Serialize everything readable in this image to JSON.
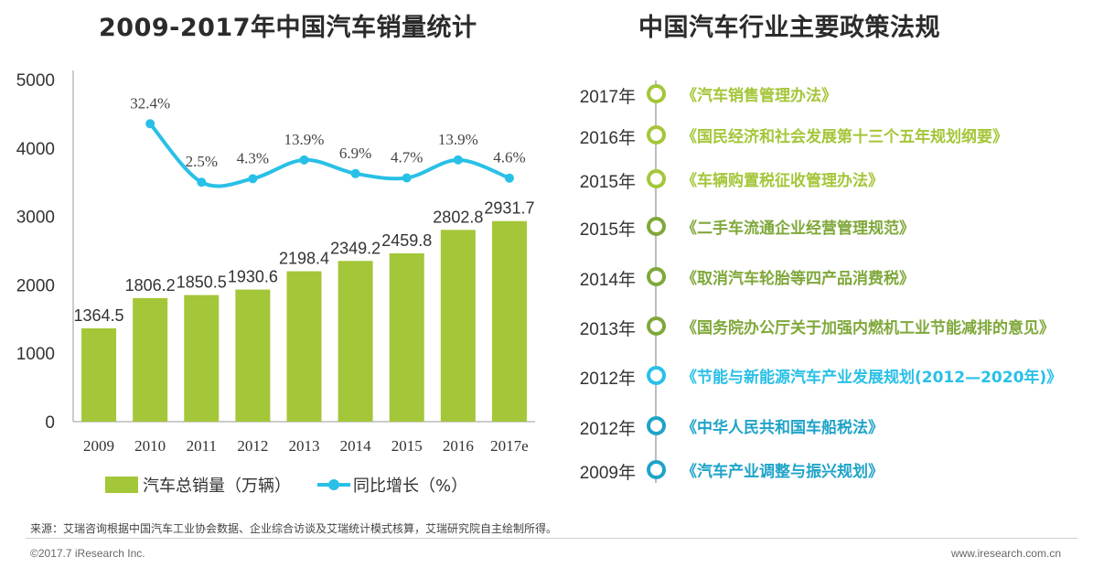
{
  "chart_data": {
    "type": "bar+line",
    "title": "2009-2017年中国汽车销量统计",
    "categories": [
      "2009",
      "2010",
      "2011",
      "2012",
      "2013",
      "2014",
      "2015",
      "2016",
      "2017e"
    ],
    "series": [
      {
        "name": "汽车总销量（万辆）",
        "type": "bar",
        "values": [
          1364.5,
          1806.2,
          1850.5,
          1930.6,
          2198.4,
          2349.2,
          2459.8,
          2802.8,
          2931.7
        ],
        "labels": [
          "1364.5",
          "1806.2",
          "1850.5",
          "1930.6",
          "2198.4",
          "2349.2",
          "2459.8",
          "2802.8",
          "2931.7"
        ],
        "color": "#a4c639"
      },
      {
        "name": "同比增长（%）",
        "type": "line",
        "values": [
          null,
          32.4,
          2.5,
          4.3,
          13.9,
          6.9,
          4.7,
          13.9,
          4.6
        ],
        "labels": [
          "",
          "32.4%",
          "2.5%",
          "4.3%",
          "13.9%",
          "6.9%",
          "4.7%",
          "13.9%",
          "4.6%"
        ],
        "color": "#29c0e7"
      }
    ],
    "ylim": [
      0,
      5000
    ],
    "yticks": [
      "0",
      "1000",
      "2000",
      "3000",
      "4000",
      "5000"
    ],
    "growth_ylim": [
      -120,
      55
    ],
    "legend": "bottom"
  },
  "policy": {
    "title": "中国汽车行业主要政策法规",
    "items": [
      {
        "year": "2017年",
        "text": "《汽车销售管理办法》",
        "color": "#a4c639"
      },
      {
        "year": "2016年",
        "text": "《国民经济和社会发展第十三个五年规划纲要》",
        "color": "#a4c639"
      },
      {
        "year": "2015年",
        "text": "《车辆购置税征收管理办法》",
        "color": "#a4c639"
      },
      {
        "year": "2015年",
        "text": "《二手车流通企业经营管理规范》",
        "color": "#7fa83a"
      },
      {
        "year": "2014年",
        "text": "《取消汽车轮胎等四产品消费税》",
        "color": "#7fa83a"
      },
      {
        "year": "2013年",
        "text": "《国务院办公厅关于加强内燃机工业节能减排的意见》",
        "color": "#7fa83a"
      },
      {
        "year": "2012年",
        "text": "《节能与新能源汽车产业发展规划(2012—2020年)》",
        "color": "#29c0e7"
      },
      {
        "year": "2012年",
        "text": "《中华人民共和国车船税法》",
        "color": "#1fa3c8"
      },
      {
        "year": "2009年",
        "text": "《汽车产业调整与振兴规划》",
        "color": "#1fa3c8"
      }
    ]
  },
  "footer": {
    "source": "来源：艾瑞咨询根据中国汽车工业协会数据、企业综合访谈及艾瑞统计模式核算，艾瑞研究院自主绘制所得。",
    "copyright": "©2017.7 iResearch Inc.",
    "website": "www.iresearch.com.cn"
  }
}
